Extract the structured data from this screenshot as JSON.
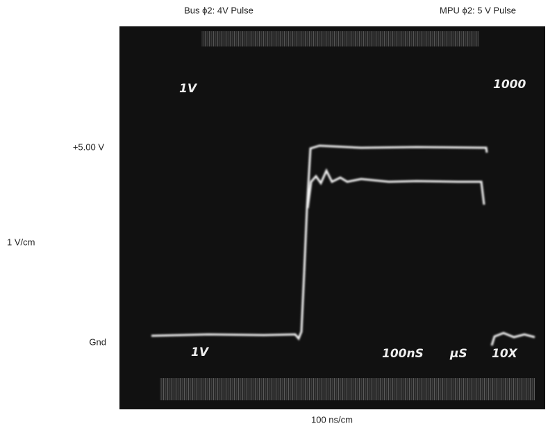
{
  "labels": {
    "top_left": "Bus ϕ2: 4V Pulse",
    "top_right": "MPU ϕ2: 5 V Pulse",
    "level_high": "+5.00 V",
    "vertical_scale": "1 V/cm",
    "level_ground": "Gnd",
    "horizontal_scale": "100 ns/cm"
  },
  "screen": {
    "top_left": "1V",
    "top_right": "1000",
    "bottom_left": "1V",
    "timebase": "100nS",
    "unit": "µS",
    "probe": "10X"
  }
}
